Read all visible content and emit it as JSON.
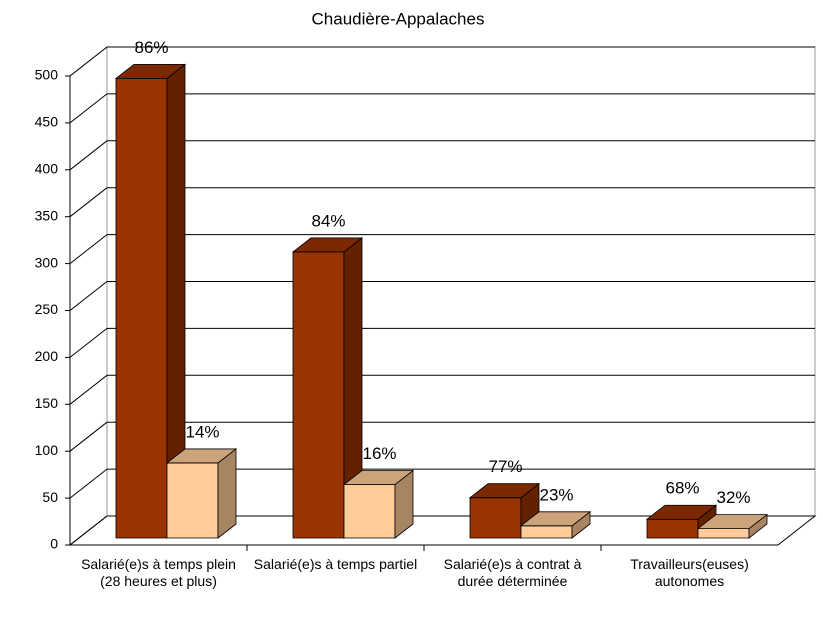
{
  "chart_data": {
    "type": "bar3d",
    "title": "Chaudière-Appalaches",
    "categories": [
      "Salarié(e)s à temps plein (28 heures et plus)",
      "Salarié(e)s à temps partiel",
      "Salarié(e)s à contrat à durée déterminée",
      "Travailleurs(euses) autonomes"
    ],
    "series": [
      {
        "color": "#993300",
        "values": [
          490,
          305,
          43,
          20
        ],
        "labels": [
          "86%",
          "84%",
          "77%",
          "68%"
        ]
      },
      {
        "color": "#ffcc99",
        "values": [
          80,
          57,
          13,
          10
        ],
        "labels": [
          "14%",
          "16%",
          "23%",
          "32%"
        ]
      }
    ],
    "ylim": [
      0,
      500
    ],
    "yticks": [
      0,
      50,
      100,
      150,
      200,
      250,
      300,
      350,
      400,
      450,
      500
    ],
    "grid": true
  }
}
